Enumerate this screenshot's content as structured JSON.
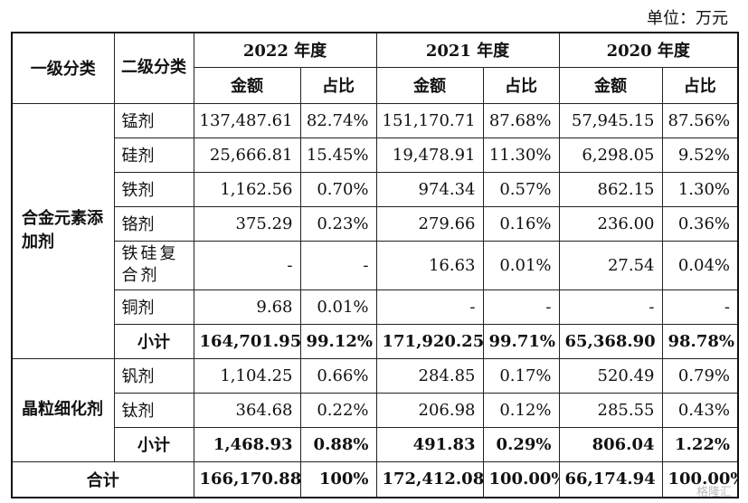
{
  "unit_label": "单位：万元",
  "headers": {
    "level1": "一级分类",
    "level2": "二级分类",
    "years": [
      "2022 年度",
      "2021 年度",
      "2020 年度"
    ],
    "amount": "金额",
    "ratio": "占比"
  },
  "groups": [
    {
      "category": "合金元素添加剂",
      "rows": [
        {
          "name": "锰剂",
          "values": [
            "137,487.61",
            "82.74%",
            "151,170.71",
            "87.68%",
            "57,945.15",
            "87.56%"
          ]
        },
        {
          "name": "硅剂",
          "values": [
            "25,666.81",
            "15.45%",
            "19,478.91",
            "11.30%",
            "6,298.05",
            "9.52%"
          ]
        },
        {
          "name": "铁剂",
          "values": [
            "1,162.56",
            "0.70%",
            "974.34",
            "0.57%",
            "862.15",
            "1.30%"
          ]
        },
        {
          "name": "铬剂",
          "values": [
            "375.29",
            "0.23%",
            "279.66",
            "0.16%",
            "236.00",
            "0.36%"
          ]
        },
        {
          "name": "铁硅复合剂",
          "values": [
            "-",
            "-",
            "16.63",
            "0.01%",
            "27.54",
            "0.04%"
          ]
        },
        {
          "name": "铜剂",
          "values": [
            "9.68",
            "0.01%",
            "-",
            "-",
            "-",
            "-"
          ]
        }
      ],
      "subtotal": {
        "label": "小计",
        "values": [
          "164,701.95",
          "99.12%",
          "171,920.25",
          "99.71%",
          "65,368.90",
          "98.78%"
        ]
      }
    },
    {
      "category": "晶粒细化剂",
      "rows": [
        {
          "name": "钒剂",
          "values": [
            "1,104.25",
            "0.66%",
            "284.85",
            "0.17%",
            "520.49",
            "0.79%"
          ]
        },
        {
          "name": "钛剂",
          "values": [
            "364.68",
            "0.22%",
            "206.98",
            "0.12%",
            "285.55",
            "0.43%"
          ]
        }
      ],
      "subtotal": {
        "label": "小计",
        "values": [
          "1,468.93",
          "0.88%",
          "491.83",
          "0.29%",
          "806.04",
          "1.22%"
        ]
      }
    }
  ],
  "total": {
    "label": "合计",
    "values": [
      "166,170.88",
      "100%",
      "172,412.08",
      "100.00%",
      "66,174.94",
      "100.00%"
    ]
  },
  "watermark": "格隆汇"
}
